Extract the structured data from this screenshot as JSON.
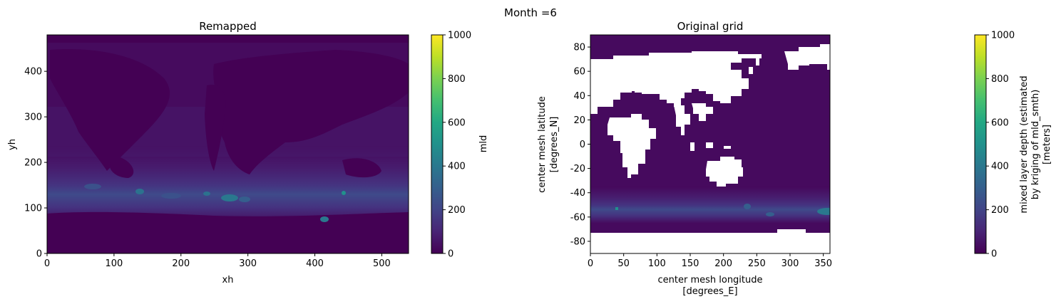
{
  "figure": {
    "suptitle": "Month =6"
  },
  "chart_data": [
    {
      "type": "heatmap",
      "title": "Remapped",
      "xlabel": "xh",
      "ylabel": "yh",
      "xlim": [
        0,
        540
      ],
      "ylim": [
        0,
        480
      ],
      "xticks": [
        0,
        100,
        200,
        300,
        400,
        500
      ],
      "yticks": [
        0,
        100,
        200,
        300,
        400
      ],
      "colorbar": {
        "label": "mld",
        "range": [
          0,
          1000
        ],
        "ticks": [
          0,
          200,
          400,
          600,
          800,
          1000
        ],
        "colormap": "viridis"
      },
      "land_mask_visible": false
    },
    {
      "type": "heatmap",
      "title": "Original grid",
      "xlabel_lines": [
        "center mesh longitude",
        "[degrees_E]"
      ],
      "ylabel_lines": [
        "center mesh latitude",
        "[degrees_N]"
      ],
      "xlim": [
        0,
        360
      ],
      "ylim": [
        -90,
        90
      ],
      "xticks": [
        0,
        50,
        100,
        150,
        200,
        250,
        300,
        350
      ],
      "yticks": [
        -80,
        -60,
        -40,
        -20,
        0,
        20,
        40,
        60,
        80
      ],
      "colorbar": {
        "label_lines": [
          "mixed layer depth (estimated",
          "by kriging of mld_smth)",
          "[meters]"
        ],
        "range": [
          0,
          1000
        ],
        "ticks": [
          0,
          200,
          400,
          600,
          800,
          1000
        ],
        "colormap": "viridis"
      },
      "land_mask_visible": true,
      "land_color": "#ffffff"
    }
  ],
  "colors": {
    "background": "#440154",
    "ocean": "#46085c",
    "band_mid": "#433d84",
    "band_high": "#3b518b",
    "hotspot": "#2c728e",
    "hotspot_bright": "#21918c",
    "mask": "#ffffff"
  }
}
